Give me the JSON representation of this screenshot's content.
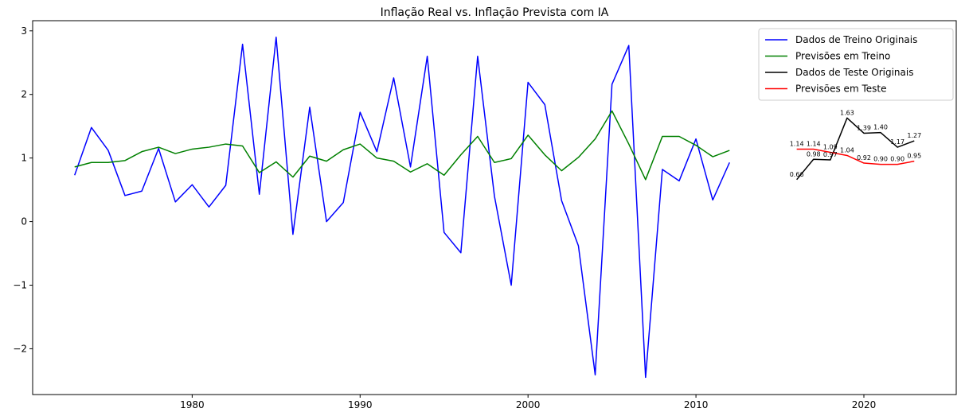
{
  "chart_data": {
    "type": "line",
    "title": "Inflação Real vs. Inflação Prevista com IA",
    "xlabel": "",
    "ylabel": "",
    "xlim": [
      1970.5,
      2025.5
    ],
    "ylim": [
      -2.72,
      3.16
    ],
    "xticks": [
      1980,
      1990,
      2000,
      2010,
      2020
    ],
    "xtick_labels": [
      "1980",
      "1990",
      "2000",
      "2010",
      "2020"
    ],
    "yticks": [
      -2,
      -1,
      0,
      1,
      2,
      3
    ],
    "ytick_labels": [
      "−2",
      "−1",
      "0",
      "1",
      "2",
      "3"
    ],
    "grid": false,
    "legend_position": "top-right",
    "series": [
      {
        "name": "Dados de Treino Originais",
        "color": "#0000ff",
        "x": [
          1973,
          1974,
          1975,
          1976,
          1977,
          1978,
          1979,
          1980,
          1981,
          1982,
          1983,
          1984,
          1985,
          1986,
          1987,
          1988,
          1989,
          1990,
          1991,
          1992,
          1993,
          1994,
          1995,
          1996,
          1997,
          1998,
          1999,
          2000,
          2001,
          2002,
          2003,
          2004,
          2005,
          2006,
          2007,
          2008,
          2009,
          2010,
          2011,
          2012
        ],
        "y": [
          0.73,
          1.48,
          1.12,
          0.41,
          0.48,
          1.15,
          0.31,
          0.58,
          0.23,
          0.57,
          2.79,
          0.43,
          2.9,
          -0.2,
          1.8,
          0.0,
          0.3,
          1.72,
          1.1,
          2.26,
          0.86,
          2.6,
          -0.17,
          -0.49,
          2.6,
          0.4,
          -1.0,
          2.19,
          1.84,
          0.33,
          -0.38,
          -2.41,
          2.16,
          2.77,
          -2.45,
          0.82,
          0.64,
          1.3,
          0.34,
          0.93
        ]
      },
      {
        "name": "Previsões em Treino",
        "color": "#008000",
        "x": [
          1973,
          1974,
          1975,
          1976,
          1977,
          1978,
          1979,
          1980,
          1981,
          1982,
          1983,
          1984,
          1985,
          1986,
          1987,
          1988,
          1989,
          1990,
          1991,
          1992,
          1993,
          1994,
          1995,
          1996,
          1997,
          1998,
          1999,
          2000,
          2001,
          2002,
          2003,
          2004,
          2005,
          2006,
          2007,
          2008,
          2009,
          2010,
          2011,
          2012
        ],
        "y": [
          0.86,
          0.93,
          0.93,
          0.96,
          1.1,
          1.17,
          1.07,
          1.14,
          1.17,
          1.22,
          1.19,
          0.77,
          0.94,
          0.7,
          1.03,
          0.95,
          1.13,
          1.22,
          1.0,
          0.95,
          0.78,
          0.91,
          0.73,
          1.05,
          1.34,
          0.93,
          0.99,
          1.36,
          1.05,
          0.8,
          1.01,
          1.3,
          1.74,
          1.22,
          0.66,
          1.34,
          1.34,
          1.2,
          1.02,
          1.12
        ]
      },
      {
        "name": "Dados de Teste Originais",
        "color": "#000000",
        "x": [
          2016,
          2017,
          2018,
          2019,
          2020,
          2021,
          2022,
          2023
        ],
        "y": [
          0.66,
          0.98,
          0.97,
          1.63,
          1.39,
          1.4,
          1.17,
          1.27
        ],
        "labels": [
          "0.66",
          "0.98",
          "0.97",
          "1.63",
          "1.39",
          "1.40",
          "1.17",
          "1.27"
        ]
      },
      {
        "name": "Previsões em Teste",
        "color": "#ff0000",
        "x": [
          2016,
          2017,
          2018,
          2019,
          2020,
          2021,
          2022,
          2023
        ],
        "y": [
          1.14,
          1.14,
          1.09,
          1.04,
          0.92,
          0.9,
          0.9,
          0.95
        ],
        "labels": [
          "1.14",
          "1.14",
          "1.09",
          "1.04",
          "0.92",
          "0.90",
          "0.90",
          "0.95"
        ]
      }
    ]
  }
}
